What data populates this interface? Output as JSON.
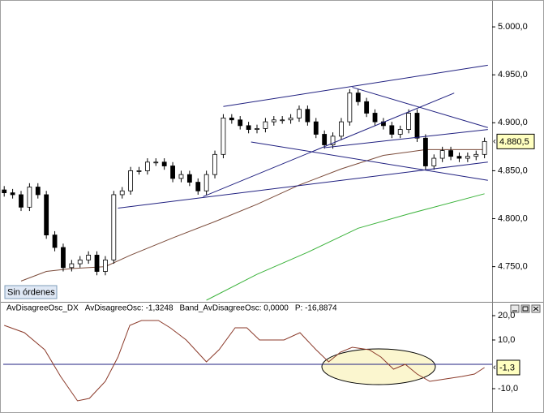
{
  "status_label": "Sin órdenes",
  "chart_data": [
    {
      "type": "candlestick",
      "xlim": [
        -0.5,
        57.9
      ],
      "ylim": [
        4715,
        5028
      ],
      "yticks": [
        {
          "value": 5000,
          "label": "5.000,0"
        },
        {
          "value": 4950,
          "label": "4.950,0"
        },
        {
          "value": 4900,
          "label": "4.900,0"
        },
        {
          "value": 4850,
          "label": "4.850,0"
        },
        {
          "value": 4800,
          "label": "4.800,0"
        },
        {
          "value": 4750,
          "label": "4.750,0"
        }
      ],
      "grid": false,
      "color": "#000000",
      "open": [
        4830,
        4827,
        4825,
        4812,
        4833,
        4825,
        4783,
        4770,
        4749,
        4753,
        4757,
        4762,
        4745,
        4757,
        4825,
        4829,
        4850,
        4850,
        4859,
        4859,
        4855,
        4842,
        4846,
        4838,
        4829,
        4846,
        4867,
        4905,
        4903,
        4897,
        4893,
        4894,
        4901,
        4903,
        4903,
        4905,
        4914,
        4901,
        4888,
        4877,
        4886,
        4901,
        4931,
        4922,
        4910,
        4901,
        4897,
        4888,
        4893,
        4910,
        4884,
        4855,
        4863,
        4871,
        4865,
        4863,
        4865,
        4867
      ],
      "high": [
        4834,
        4831,
        4829,
        4837,
        4837,
        4829,
        4787,
        4774,
        4757,
        4761,
        4766,
        4766,
        4761,
        4829,
        4833,
        4854,
        4854,
        4863,
        4863,
        4863,
        4859,
        4850,
        4850,
        4842,
        4850,
        4871,
        4909,
        4909,
        4907,
        4901,
        4898,
        4905,
        4907,
        4907,
        4909,
        4918,
        4918,
        4905,
        4892,
        4890,
        4905,
        4935,
        4935,
        4926,
        4914,
        4905,
        4901,
        4897,
        4914,
        4914,
        4888,
        4867,
        4875,
        4875,
        4869,
        4869,
        4871,
        4884.5
      ],
      "low": [
        4823,
        4821,
        4808,
        4808,
        4821,
        4779,
        4766,
        4745,
        4745,
        4749,
        4753,
        4741,
        4741,
        4753,
        4821,
        4825,
        4846,
        4846,
        4855,
        4851,
        4838,
        4838,
        4834,
        4825,
        4825,
        4842,
        4863,
        4899,
        4893,
        4889,
        4889,
        4890,
        4897,
        4899,
        4899,
        4901,
        4897,
        4884,
        4873,
        4873,
        4882,
        4897,
        4918,
        4906,
        4897,
        4893,
        4884,
        4884,
        4889,
        4880,
        4851,
        4851,
        4859,
        4861,
        4859,
        4859,
        4861,
        4863
      ],
      "close": [
        4827,
        4825,
        4812,
        4833,
        4825,
        4783,
        4770,
        4749,
        4753,
        4757,
        4762,
        4745,
        4757,
        4825,
        4829,
        4850,
        4850,
        4859,
        4859,
        4855,
        4842,
        4846,
        4838,
        4829,
        4846,
        4867,
        4905,
        4903,
        4897,
        4893,
        4894,
        4901,
        4903,
        4903,
        4905,
        4914,
        4901,
        4888,
        4877,
        4886,
        4901,
        4931,
        4922,
        4910,
        4901,
        4897,
        4888,
        4893,
        4910,
        4884,
        4855,
        4863,
        4871,
        4865,
        4863,
        4865,
        4867,
        4880.5
      ],
      "last_price": {
        "value": 4880.5,
        "label": "4.880,5"
      },
      "overlays": [
        {
          "color": "#7b4b3a",
          "x": [
            2,
            5,
            8,
            12,
            15,
            20,
            25,
            30,
            35,
            40,
            45,
            50,
            57
          ],
          "values": [
            4735,
            4745,
            4748,
            4750,
            4762,
            4780,
            4797,
            4815,
            4835,
            4852,
            4866,
            4872,
            4872
          ]
        },
        {
          "color": "#3cb33c",
          "x": [
            24,
            30,
            36,
            42,
            48,
            57
          ],
          "values": [
            4715,
            4742,
            4765,
            4790,
            4805,
            4826
          ]
        }
      ],
      "trendline_color": "#202080",
      "trendlines": [
        {
          "x": [
            26,
            57.4
          ],
          "y": [
            4917,
            4960
          ]
        },
        {
          "x": [
            13.5,
            57.4
          ],
          "y": [
            4811,
            4859
          ]
        },
        {
          "x": [
            29.3,
            57.4
          ],
          "y": [
            4880,
            4840
          ]
        },
        {
          "x": [
            23.6,
            53.4
          ],
          "y": [
            4823,
            4931
          ]
        },
        {
          "x": [
            41.3,
            57.4
          ],
          "y": [
            4937,
            4895
          ]
        },
        {
          "x": [
            38,
            57.4
          ],
          "y": [
            4874,
            4893
          ]
        }
      ]
    },
    {
      "type": "line",
      "header": [
        "AvDisagreeOsc_DX",
        "AvDisagreeOsc: -1,3248",
        "Band_AvDisagreeOsc: 0,0000",
        "P: -16,8874"
      ],
      "xlim": [
        -0.5,
        57.9
      ],
      "ylim": [
        -20,
        25
      ],
      "yticks": [
        {
          "value": 20,
          "label": "20,0"
        },
        {
          "value": 10,
          "label": "10,0"
        },
        {
          "value": -10,
          "label": "-10,0"
        }
      ],
      "band": 0,
      "band_color": "#202080",
      "last_value": {
        "value": -1.3248,
        "label": "-1,3"
      },
      "series": [
        {
          "color": "#8b3a2a",
          "x": [
            0,
            2.4,
            4.8,
            6.7,
            8.7,
            10.1,
            12,
            13.5,
            14.9,
            16.3,
            18.3,
            19.7,
            21.6,
            24,
            25.5,
            27.4,
            28.8,
            30.3,
            33.2,
            35.1,
            37,
            38.5,
            39.9,
            41.3,
            43.3,
            44.7,
            46.2,
            47.6,
            49,
            50.5,
            52.4,
            54.3,
            55.8,
            57
          ],
          "values": [
            16,
            13,
            6,
            -5,
            -15,
            -14,
            -7,
            3,
            16,
            18,
            18,
            15,
            10,
            1,
            6,
            15,
            15,
            10,
            10,
            13,
            6,
            1,
            5,
            7,
            6,
            3,
            -2,
            0,
            -4,
            -7,
            -6,
            -5,
            -4,
            -1.3248
          ]
        }
      ]
    }
  ]
}
